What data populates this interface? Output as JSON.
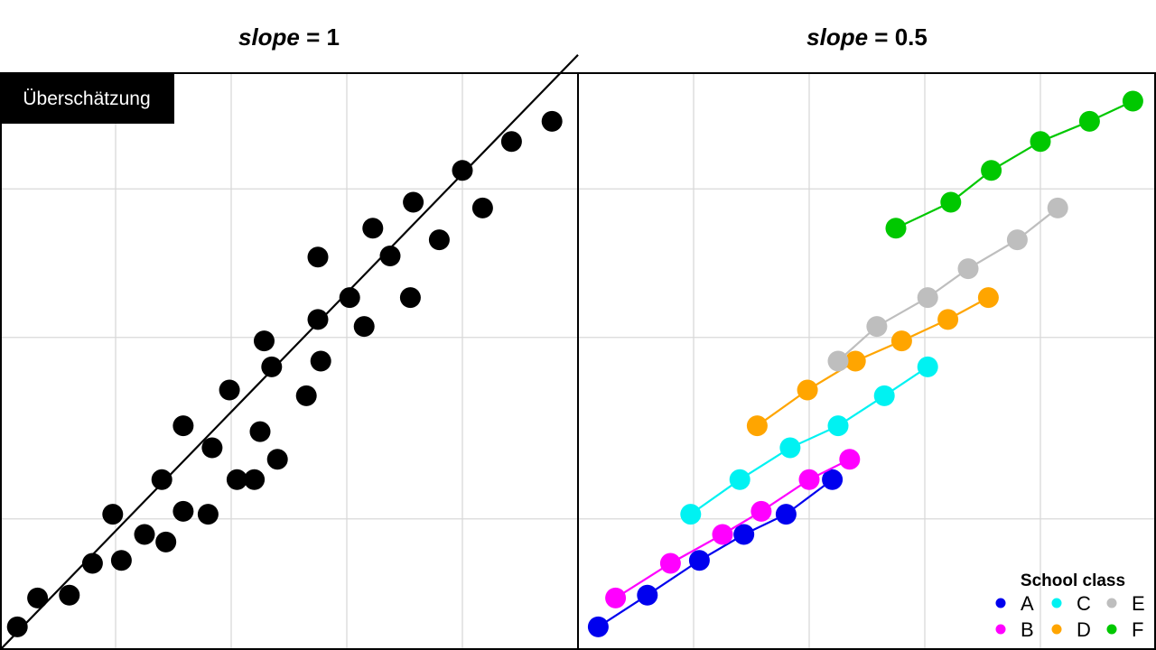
{
  "panels": [
    {
      "title_var": "slope",
      "title_rest": " = 1"
    },
    {
      "title_var": "slope",
      "title_rest": " = 0.5"
    }
  ],
  "label_box": "Überschätzung",
  "colors": {
    "A": "#0000ee",
    "B": "#ff00ff",
    "C": "#00f2f2",
    "D": "#ffa500",
    "E": "#bebebe",
    "F": "#00c800",
    "left": "#000000"
  },
  "chart_data": [
    {
      "type": "scatter",
      "title": "slope = 1",
      "xlim": [
        0,
        10
      ],
      "ylim": [
        0,
        10
      ],
      "grid": true,
      "gridx": [
        2,
        4,
        6,
        8
      ],
      "gridy": [
        2.27,
        5.41,
        7.98
      ],
      "fit_line": {
        "from": [
          0,
          0
        ],
        "to": [
          10,
          10.3
        ]
      },
      "points": [
        [
          0.3,
          0.4
        ],
        [
          0.65,
          0.9
        ],
        [
          1.2,
          0.95
        ],
        [
          1.6,
          1.5
        ],
        [
          1.95,
          2.35
        ],
        [
          2.1,
          1.55
        ],
        [
          2.5,
          2.0
        ],
        [
          2.87,
          1.87
        ],
        [
          2.8,
          2.95
        ],
        [
          3.17,
          2.4
        ],
        [
          3.17,
          3.88
        ],
        [
          3.6,
          2.35
        ],
        [
          3.67,
          3.5
        ],
        [
          3.97,
          4.5
        ],
        [
          4.1,
          2.95
        ],
        [
          4.4,
          2.95
        ],
        [
          4.5,
          3.78
        ],
        [
          4.57,
          5.35
        ],
        [
          4.7,
          4.9
        ],
        [
          4.8,
          3.3
        ],
        [
          5.3,
          4.4
        ],
        [
          5.5,
          5.72
        ],
        [
          5.55,
          5.0
        ],
        [
          5.5,
          6.8
        ],
        [
          6.05,
          6.1
        ],
        [
          6.3,
          5.6
        ],
        [
          6.45,
          7.3
        ],
        [
          6.75,
          6.82
        ],
        [
          7.1,
          6.1
        ],
        [
          7.15,
          7.75
        ],
        [
          7.6,
          7.1
        ],
        [
          8.0,
          8.3
        ],
        [
          8.35,
          7.65
        ],
        [
          8.85,
          8.8
        ],
        [
          9.55,
          9.15
        ]
      ]
    },
    {
      "type": "line",
      "title": "slope = 0.5",
      "xlim": [
        0,
        10
      ],
      "ylim": [
        0,
        10
      ],
      "grid": true,
      "gridx": [
        2,
        4,
        6,
        8
      ],
      "gridy": [
        2.27,
        5.41,
        7.98
      ],
      "legend": {
        "title": "School class",
        "position": "bottom-right",
        "columns": 3,
        "entries": [
          "A",
          "C",
          "E",
          "B",
          "D",
          "F"
        ]
      },
      "series": [
        {
          "name": "A",
          "points": [
            [
              0.35,
              0.4
            ],
            [
              1.2,
              0.95
            ],
            [
              2.1,
              1.55
            ],
            [
              2.87,
              2.0
            ],
            [
              3.6,
              2.35
            ],
            [
              4.4,
              2.95
            ]
          ]
        },
        {
          "name": "B",
          "points": [
            [
              0.65,
              0.9
            ],
            [
              1.6,
              1.5
            ],
            [
              2.5,
              2.0
            ],
            [
              3.17,
              2.4
            ],
            [
              4.0,
              2.95
            ],
            [
              4.7,
              3.3
            ]
          ]
        },
        {
          "name": "C",
          "points": [
            [
              1.95,
              2.35
            ],
            [
              2.8,
              2.95
            ],
            [
              3.67,
              3.5
            ],
            [
              4.5,
              3.88
            ],
            [
              5.3,
              4.4
            ],
            [
              6.05,
              4.9
            ]
          ]
        },
        {
          "name": "D",
          "points": [
            [
              3.1,
              3.88
            ],
            [
              3.97,
              4.5
            ],
            [
              4.8,
              5.0
            ],
            [
              5.6,
              5.35
            ],
            [
              6.4,
              5.72
            ],
            [
              7.1,
              6.1
            ]
          ]
        },
        {
          "name": "E",
          "points": [
            [
              4.5,
              5.0
            ],
            [
              5.17,
              5.6
            ],
            [
              6.05,
              6.1
            ],
            [
              6.75,
              6.6
            ],
            [
              7.6,
              7.1
            ],
            [
              8.3,
              7.65
            ]
          ]
        },
        {
          "name": "F",
          "points": [
            [
              5.5,
              7.3
            ],
            [
              6.45,
              7.75
            ],
            [
              7.15,
              8.3
            ],
            [
              8.0,
              8.8
            ],
            [
              8.85,
              9.15
            ],
            [
              9.6,
              9.5
            ]
          ]
        }
      ]
    }
  ]
}
